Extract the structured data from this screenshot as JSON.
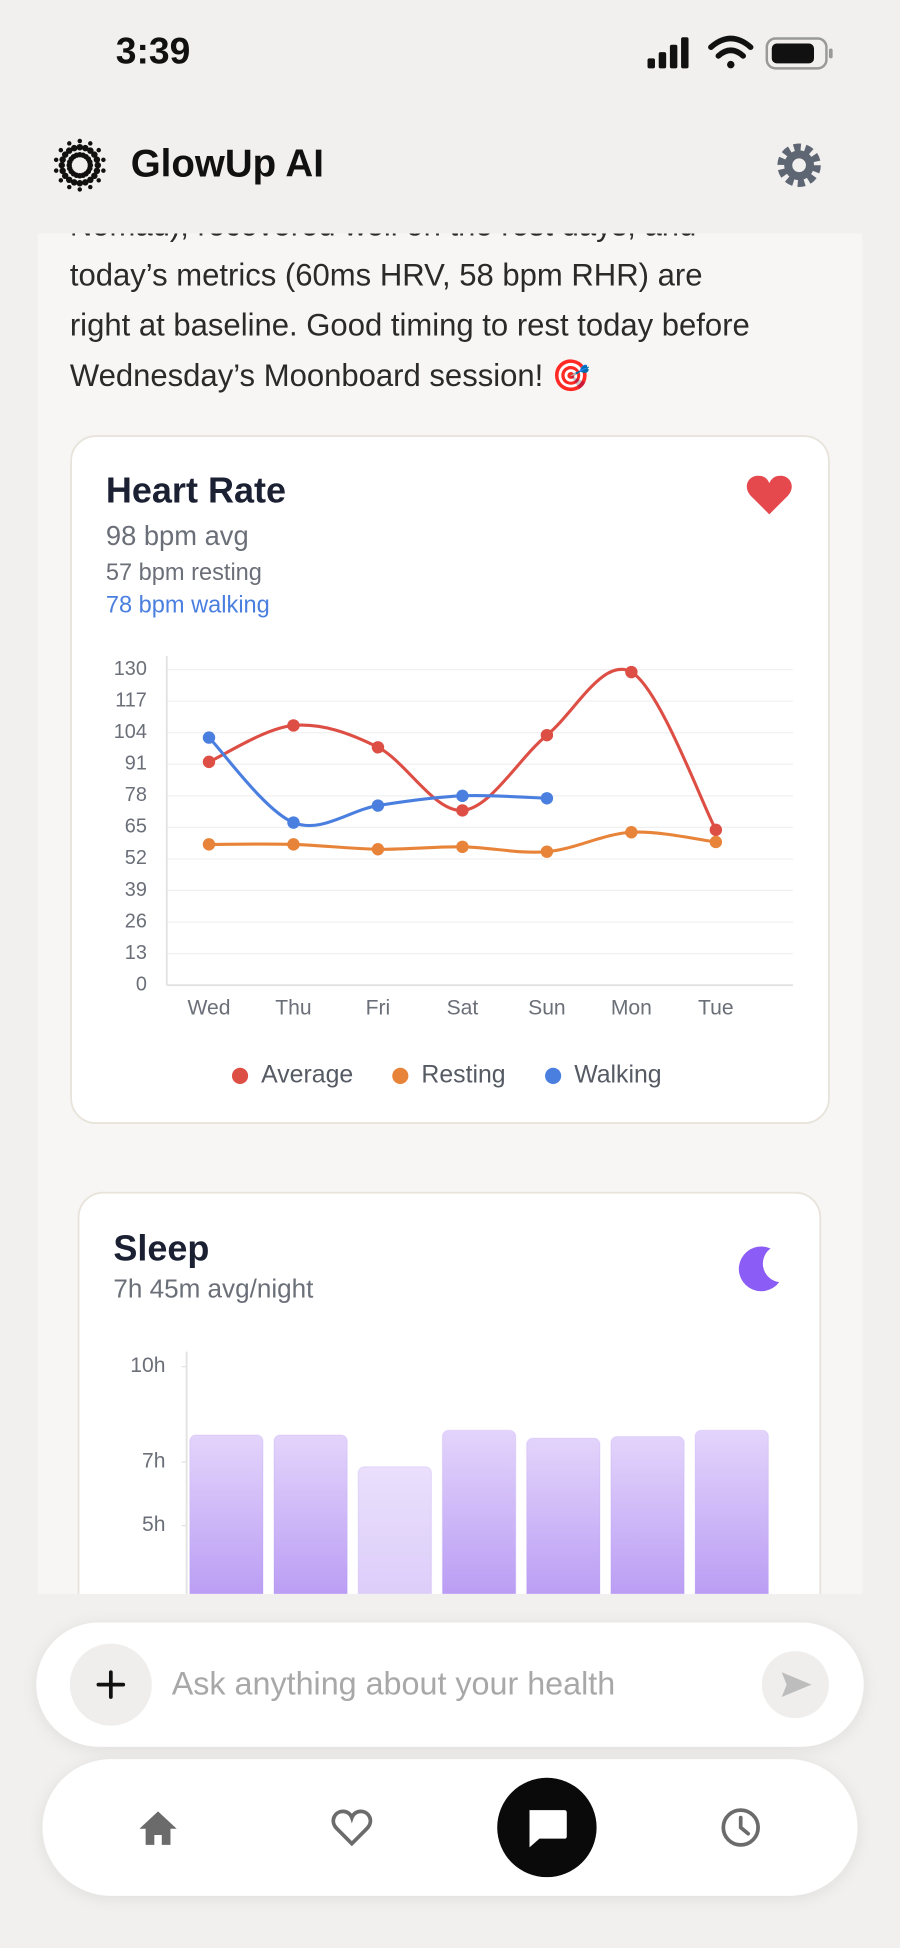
{
  "status_bar": {
    "time": "3:39"
  },
  "header": {
    "title": "GlowUp AI"
  },
  "message": {
    "lines": [
      "Nomad), recovered well on the rest days, and",
      "today’s metrics (60ms HRV, 58 bpm RHR) are",
      "right at baseline. Good timing to rest today before",
      "Wednesday’s Moonboard session! 🎯"
    ]
  },
  "heart_rate_card": {
    "title": "Heart Rate",
    "avg": "98 bpm avg",
    "resting": "57 bpm resting",
    "walking": "78 bpm walking",
    "chart_data": {
      "type": "line",
      "categories": [
        "Wed",
        "Thu",
        "Fri",
        "Sat",
        "Sun",
        "Mon",
        "Tue"
      ],
      "ylim": [
        0,
        130
      ],
      "yticks": [
        0,
        13,
        26,
        39,
        52,
        65,
        78,
        91,
        104,
        117,
        130
      ],
      "grid": true,
      "legend": "bottom",
      "series": [
        {
          "name": "Average",
          "color": "#dd4f45",
          "values": [
            92,
            107,
            98,
            72,
            103,
            129,
            64
          ]
        },
        {
          "name": "Resting",
          "color": "#e8843a",
          "values": [
            58,
            58,
            56,
            57,
            55,
            63,
            59
          ]
        },
        {
          "name": "Walking",
          "color": "#4a7fe0",
          "values": [
            102,
            67,
            74,
            78,
            77,
            null,
            null
          ]
        }
      ]
    }
  },
  "sleep_card": {
    "title": "Sleep",
    "subtitle": "7h 45m avg/night",
    "chart_data": {
      "type": "bar",
      "values": [
        7.85,
        7.85,
        6.85,
        8.0,
        7.75,
        7.8,
        8.0
      ],
      "color": "#a47ff0",
      "ylim": [
        0,
        10
      ],
      "yticks": [
        {
          "value": 5,
          "label": "5h"
        },
        {
          "value": 7,
          "label": "7h"
        },
        {
          "value": 10,
          "label": "10h"
        }
      ]
    }
  },
  "composer": {
    "placeholder": "Ask anything about your health"
  }
}
